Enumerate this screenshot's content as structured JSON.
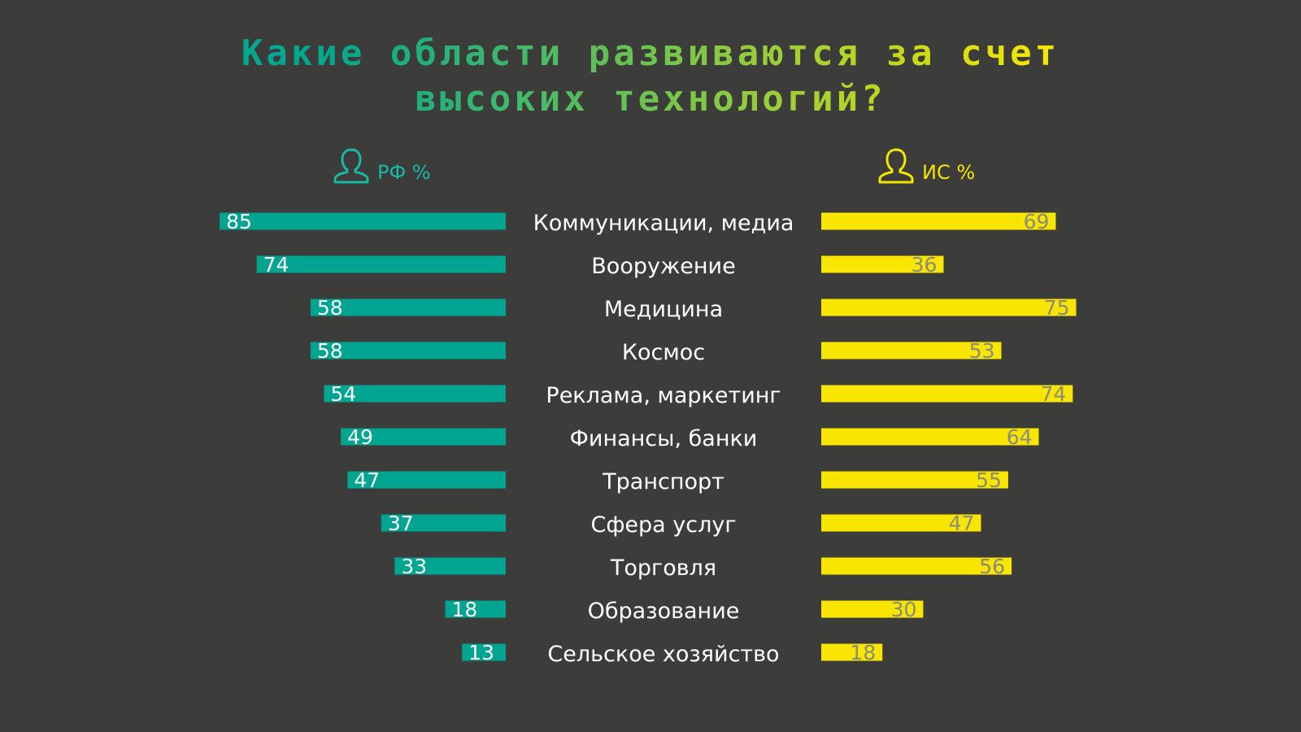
{
  "title": {
    "line1": "Какие области развиваются за счет",
    "line2": "высоких технологий?"
  },
  "legend": {
    "left": {
      "label": "РФ %",
      "icon": "person-icon",
      "color": "#00a591"
    },
    "right": {
      "label": "ИС %",
      "icon": "person-icon",
      "color": "#f8e600"
    }
  },
  "chart_data": {
    "type": "bar",
    "orientation": "horizontal-butterfly",
    "categories": [
      "Коммуникации, медиа",
      "Вооружение",
      "Медицина",
      "Космос",
      "Реклама, маркетинг",
      "Финансы, банки",
      "Транспорт",
      "Сфера услуг",
      "Торговля",
      "Образование",
      "Сельское хозяйство"
    ],
    "series": [
      {
        "name": "РФ %",
        "color": "#00a591",
        "values": [
          85,
          74,
          58,
          58,
          54,
          49,
          47,
          37,
          33,
          18,
          13
        ]
      },
      {
        "name": "ИС %",
        "color": "#f8e600",
        "values": [
          69,
          36,
          75,
          53,
          74,
          64,
          55,
          47,
          56,
          30,
          18
        ]
      }
    ],
    "xlim": [
      0,
      100
    ],
    "grid": false,
    "legend_position": "top"
  }
}
